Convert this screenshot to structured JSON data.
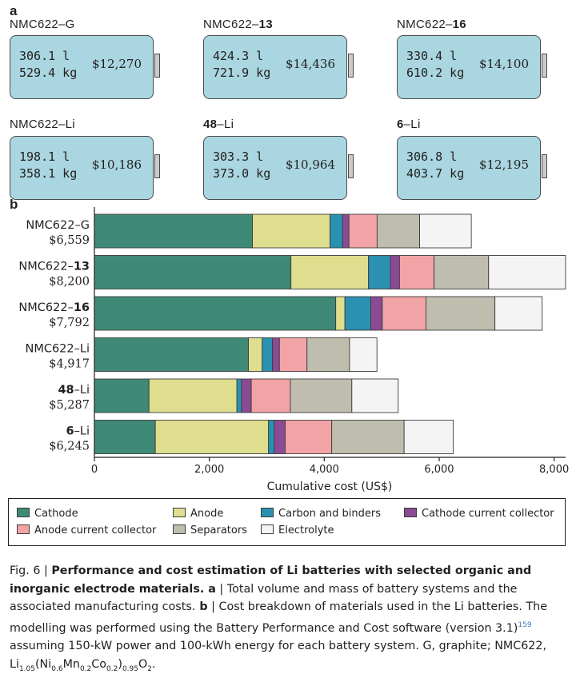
{
  "panel_a": {
    "letter": "a",
    "batteries": [
      {
        "name_prefix": "NMC622–",
        "name_bold": "",
        "name_suffix": "G",
        "volume": "306.1 l",
        "mass": "529.4 kg",
        "cost": "$12,270"
      },
      {
        "name_prefix": "NMC622–",
        "name_bold": "13",
        "name_suffix": "",
        "volume": "424.3 l",
        "mass": "721.9 kg",
        "cost": "$14,436"
      },
      {
        "name_prefix": "NMC622–",
        "name_bold": "16",
        "name_suffix": "",
        "volume": "330.4 l",
        "mass": "610.2 kg",
        "cost": "$14,100"
      },
      {
        "name_prefix": "NMC622–",
        "name_bold": "",
        "name_suffix": "Li",
        "volume": "198.1 l",
        "mass": "358.1 kg",
        "cost": "$10,186"
      },
      {
        "name_prefix": "",
        "name_bold": "48",
        "name_suffix": "–Li",
        "volume": "303.3 l",
        "mass": "373.0 kg",
        "cost": "$10,964"
      },
      {
        "name_prefix": "",
        "name_bold": "6",
        "name_suffix": "–Li",
        "volume": "306.8 l",
        "mass": "403.7 kg",
        "cost": "$12,195"
      }
    ]
  },
  "chart_data": {
    "type": "bar",
    "orientation": "horizontal",
    "stacked": true,
    "panel_letter": "b",
    "categories": [
      {
        "prefix": "NMC622–",
        "bold": "",
        "suffix": "G",
        "total": "$6,559"
      },
      {
        "prefix": "NMC622–",
        "bold": "13",
        "suffix": "",
        "total": "$8,200"
      },
      {
        "prefix": "NMC622–",
        "bold": "16",
        "suffix": "",
        "total": "$7,792"
      },
      {
        "prefix": "NMC622–",
        "bold": "",
        "suffix": "Li",
        "total": "$4,917"
      },
      {
        "prefix": "",
        "bold": "48",
        "suffix": "–Li",
        "total": "$5,287"
      },
      {
        "prefix": "",
        "bold": "6",
        "suffix": "–Li",
        "total": "$6,245"
      }
    ],
    "series": [
      {
        "name": "Cathode",
        "color": "#3f8a76",
        "values": [
          2750,
          3420,
          4200,
          2680,
          950,
          1060
        ]
      },
      {
        "name": "Anode",
        "color": "#dede8e",
        "values": [
          1350,
          1350,
          160,
          240,
          1530,
          1970
        ]
      },
      {
        "name": "Carbon and binders",
        "color": "#2a91b1",
        "values": [
          220,
          380,
          450,
          180,
          80,
          100
        ]
      },
      {
        "name": "Cathode current collector",
        "color": "#8a4b94",
        "values": [
          110,
          160,
          200,
          120,
          170,
          190
        ]
      },
      {
        "name": "Anode current collector",
        "color": "#f2a3a5",
        "values": [
          490,
          600,
          760,
          480,
          680,
          810
        ]
      },
      {
        "name": "Separators",
        "color": "#bfbdad",
        "values": [
          740,
          950,
          1200,
          740,
          1070,
          1260
        ]
      },
      {
        "name": "Electrolyte",
        "color": "#f4f4f4",
        "values": [
          899,
          1340,
          822,
          477,
          807,
          855
        ]
      }
    ],
    "x_ticks": [
      "0",
      "2,000",
      "4,000",
      "6,000",
      "8,000"
    ],
    "xlim": [
      0,
      8200
    ],
    "xlabel": "Cumulative cost (US$)",
    "grid": false,
    "legend_position": "bottom"
  },
  "caption": {
    "fig_label": "Fig. 6 | ",
    "title_bold": "Performance and cost estimation of Li batteries with selected organic and inorganic electrode materials.",
    "part_a_letter": " a",
    "part_a_text": " | Total volume and mass of battery systems and the associated manufacturing costs.",
    "part_b_letter": " b",
    "part_b_text": " | Cost breakdown of materials used in the Li batteries. The modelling was performed using the Battery Performance and Cost software (version 3.1)",
    "ref": "159",
    "part_b_text2": " assuming 150-kW power and 100-kWh energy for each battery system. G, graphite; NMC622, Li",
    "f_sub1": "1.05",
    "f_t1": "(Ni",
    "f_sub2": "0.6",
    "f_t2": "Mn",
    "f_sub3": "0.2",
    "f_t3": "Co",
    "f_sub4": "0.2",
    "f_t4": ")",
    "f_sub5": "0.95",
    "f_t5": "O",
    "f_sub6": "2",
    "f_end": "."
  }
}
